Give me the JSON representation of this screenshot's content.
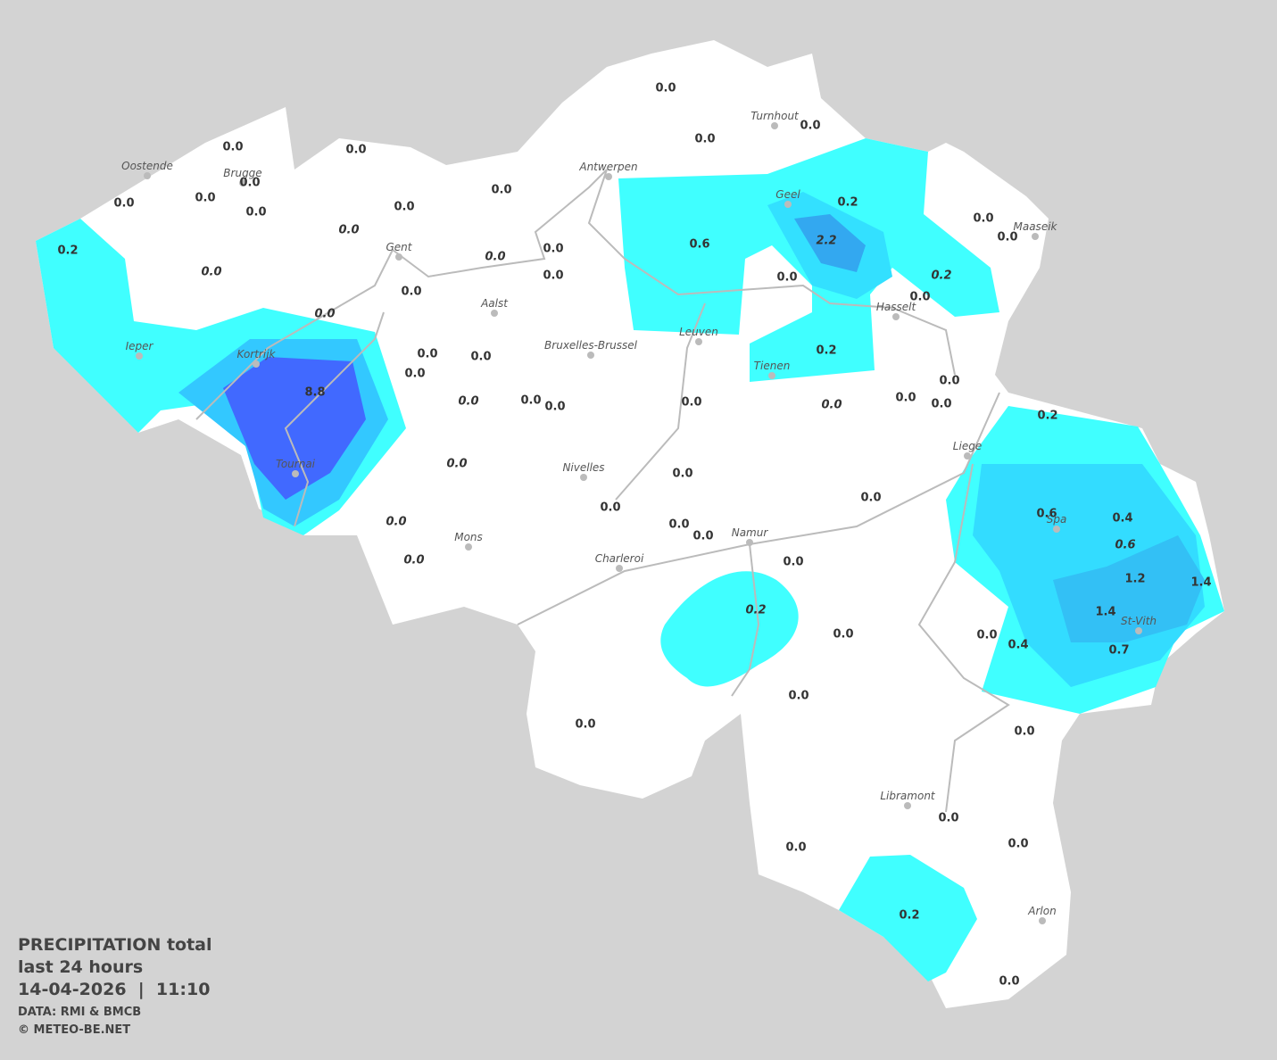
{
  "cities": [
    "Oostende",
    "Brugge",
    "Antwerpen",
    "Turnhout",
    "Geel",
    "Maaseik",
    "Gent",
    "Aalst",
    "Ieper",
    "Kortrijk",
    "Bruxelles-Brussel",
    "Leuven",
    "Hasselt",
    "Tienen",
    "Liege",
    "Tournai",
    "Nivelles",
    "Spa",
    "Mons",
    "Namur",
    "Charleroi",
    "St-Vith",
    "Libramont",
    "Arlon"
  ],
  "readings": [
    "0.0",
    "0.0",
    "0.0",
    "0.0",
    "0.0",
    "0.0",
    "0.0",
    "0.0",
    "0.0",
    "0.0",
    "0.0",
    "0.0",
    "0.2",
    "0.0",
    "0.0",
    "0.0",
    "0.0",
    "0.0",
    "0.0",
    "0.6",
    "2.2",
    "0.2",
    "0.0",
    "0.0",
    "0.2",
    "0.0",
    "0.0",
    "0.2",
    "0.0",
    "0.0",
    "0.0",
    "8.8",
    "0.0",
    "0.0",
    "0.0",
    "0.0",
    "0.0",
    "0.0",
    "0.0",
    "0.0",
    "0.2",
    "0.0",
    "0.0",
    "0.0",
    "0.0",
    "0.0",
    "0.0",
    "0.0",
    "0.0",
    "0.0",
    "0.6",
    "0.4",
    "0.6",
    "1.2",
    "1.4",
    "1.4",
    "0.7",
    "0.4",
    "0.0",
    "0.2",
    "0.0",
    "0.0",
    "0.0",
    "0.0",
    "0.0",
    "0.0",
    "0.0",
    "0.2",
    "0.0"
  ],
  "legend": {
    "title": "PRECIPITATION total",
    "period": "last 24 hours",
    "datetime": "14-04-2026  |  11:10",
    "source": "DATA: RMI & BMCB",
    "credit": "© METEO-BE.NET"
  }
}
